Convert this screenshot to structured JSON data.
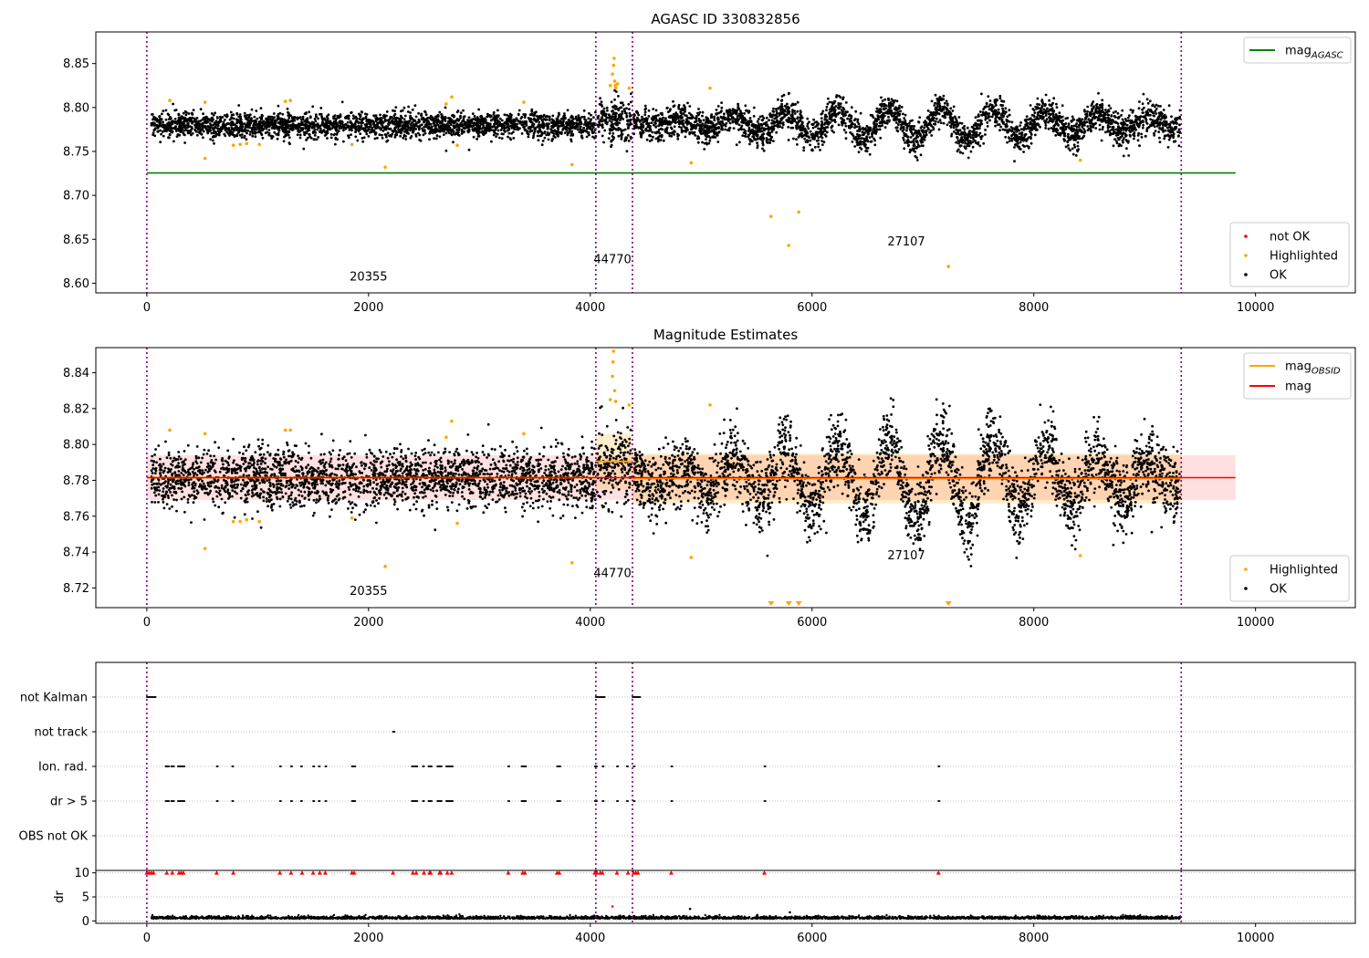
{
  "chart_data": [
    {
      "type": "scatter",
      "title": "AGASC ID 330832856",
      "xlabel": "",
      "ylabel": "",
      "xlim": [
        -460,
        10900
      ],
      "ylim": [
        8.589,
        8.886
      ],
      "xticks": [
        0,
        2000,
        4000,
        6000,
        8000,
        10000
      ],
      "yticks": [
        8.6,
        8.65,
        8.7,
        8.75,
        8.8,
        8.85
      ],
      "ytick_decimals": 2,
      "obsid_boundaries": [
        0,
        4050,
        4380,
        9330
      ],
      "obsid_labels": [
        {
          "text": "20355",
          "x": 2000,
          "y": 8.603
        },
        {
          "text": "44770",
          "x": 4200,
          "y": 8.623
        },
        {
          "text": "27107",
          "x": 6850,
          "y": 8.643
        }
      ],
      "lines": [
        {
          "label": "mag",
          "sub": "AGASC",
          "color": "#008000",
          "y": 8.7255,
          "x0": 0,
          "x1": 9820
        }
      ],
      "line_legend_position": "top-right",
      "point_legend_position": "bottom-right",
      "points_legend": [
        {
          "label": "not OK",
          "color": "#ff0000"
        },
        {
          "label": "Highlighted",
          "color": "#ffa500"
        },
        {
          "label": "OK",
          "color": "#000000"
        }
      ],
      "ok_points_model": {
        "color": "#000000",
        "segments": [
          {
            "x_start": 40,
            "x_end": 4050,
            "mean": 8.78,
            "scatter": 0.007,
            "trend": 0.0
          },
          {
            "x_start": 4060,
            "x_end": 4370,
            "mean": 8.785,
            "scatter": 0.012,
            "trend": 0.0
          },
          {
            "x_start": 4390,
            "x_end": 9320,
            "mean": 8.781,
            "scatter": 0.009,
            "trend": 0.0,
            "wave_amp": 0.018,
            "wave_period": 470
          }
        ]
      },
      "highlighted_points": {
        "color": "#ffa500",
        "values": [
          [
            207,
            8.808
          ],
          [
            525,
            8.806
          ],
          [
            525,
            8.742
          ],
          [
            780,
            8.757
          ],
          [
            842,
            8.758
          ],
          [
            900,
            8.759
          ],
          [
            1015,
            8.758
          ],
          [
            1250,
            8.807
          ],
          [
            1295,
            8.808
          ],
          [
            1850,
            8.758
          ],
          [
            2150,
            8.732
          ],
          [
            2700,
            8.804
          ],
          [
            2750,
            8.812
          ],
          [
            2800,
            8.757
          ],
          [
            3400,
            8.806
          ],
          [
            3835,
            8.735
          ],
          [
            4180,
            8.825
          ],
          [
            4200,
            8.838
          ],
          [
            4210,
            8.848
          ],
          [
            4215,
            8.856
          ],
          [
            4220,
            8.83
          ],
          [
            4225,
            8.825
          ],
          [
            4230,
            8.822
          ],
          [
            4245,
            8.827
          ],
          [
            4350,
            8.822
          ],
          [
            5080,
            8.822
          ],
          [
            4910,
            8.737
          ],
          [
            5630,
            8.676
          ],
          [
            5790,
            8.643
          ],
          [
            5880,
            8.681
          ],
          [
            7230,
            8.619
          ],
          [
            8420,
            8.74
          ]
        ]
      }
    },
    {
      "type": "scatter",
      "title": "Magnitude Estimates",
      "xlabel": "",
      "ylabel": "",
      "xlim": [
        -460,
        10900
      ],
      "ylim": [
        8.709,
        8.854
      ],
      "xticks": [
        0,
        2000,
        4000,
        6000,
        8000,
        10000
      ],
      "yticks": [
        8.72,
        8.74,
        8.76,
        8.78,
        8.8,
        8.82,
        8.84
      ],
      "ytick_decimals": 2,
      "obsid_boundaries": [
        0,
        4050,
        4380,
        9330
      ],
      "obsid_labels": [
        {
          "text": "20355",
          "x": 2000,
          "y": 8.716
        },
        {
          "text": "44770",
          "x": 4200,
          "y": 8.726
        },
        {
          "text": "27107",
          "x": 6850,
          "y": 8.736
        }
      ],
      "bands": [
        {
          "x0": 0,
          "x1": 9820,
          "y0": 8.769,
          "y1": 8.794,
          "color": "#ff0000",
          "opacity": 0.12
        },
        {
          "x0": 4050,
          "x1": 4380,
          "y0": 8.775,
          "y1": 8.806,
          "color": "#ffa500",
          "opacity": 0.2
        },
        {
          "x0": 4380,
          "x1": 9330,
          "y0": 8.767,
          "y1": 8.795,
          "color": "#ffa500",
          "opacity": 0.2
        }
      ],
      "lines": [
        {
          "label": "mag",
          "sub": "OBSID",
          "color": "#ffa500",
          "segments": [
            [
              0,
              4050,
              8.7815
            ],
            [
              4050,
              4380,
              8.7905
            ],
            [
              4380,
              9330,
              8.781
            ]
          ]
        },
        {
          "label": "mag",
          "sub": "",
          "color": "#ff0000",
          "y": 8.7815,
          "x0": 0,
          "x1": 9820
        }
      ],
      "line_legend_position": "top-right",
      "point_legend_position": "bottom-right",
      "points_legend": [
        {
          "label": "Highlighted",
          "color": "#ffa500"
        },
        {
          "label": "OK",
          "color": "#000000"
        }
      ],
      "ok_points_model": {
        "color": "#000000",
        "segments": [
          {
            "x_start": 40,
            "x_end": 4050,
            "mean": 8.781,
            "scatter": 0.008,
            "trend": 0.0
          },
          {
            "x_start": 4060,
            "x_end": 4370,
            "mean": 8.788,
            "scatter": 0.012,
            "trend": 0.0
          },
          {
            "x_start": 4390,
            "x_end": 9320,
            "mean": 8.781,
            "scatter": 0.01,
            "trend": 0.0,
            "wave_amp": 0.022,
            "wave_period": 470
          }
        ]
      },
      "highlighted_points": {
        "color": "#ffa500",
        "values": [
          [
            207,
            8.808
          ],
          [
            525,
            8.806
          ],
          [
            525,
            8.742
          ],
          [
            780,
            8.757
          ],
          [
            842,
            8.757
          ],
          [
            900,
            8.758
          ],
          [
            1015,
            8.757
          ],
          [
            1250,
            8.808
          ],
          [
            1295,
            8.808
          ],
          [
            1850,
            8.759
          ],
          [
            2150,
            8.732
          ],
          [
            2700,
            8.804
          ],
          [
            2750,
            8.813
          ],
          [
            2800,
            8.756
          ],
          [
            3400,
            8.806
          ],
          [
            3835,
            8.734
          ],
          [
            4180,
            8.825
          ],
          [
            4200,
            8.838
          ],
          [
            4205,
            8.846
          ],
          [
            4210,
            8.852
          ],
          [
            4220,
            8.83
          ],
          [
            4230,
            8.824
          ],
          [
            4350,
            8.822
          ],
          [
            5080,
            8.822
          ],
          [
            4910,
            8.737
          ],
          [
            8420,
            8.738
          ]
        ]
      },
      "out_of_range_markers": {
        "color": "#ffa500",
        "x": [
          5630,
          5790,
          5880,
          7230
        ],
        "direction": "down"
      }
    },
    {
      "type": "scatter",
      "title": "",
      "xlim": [
        -460,
        10900
      ],
      "categories": [
        "not Kalman",
        "not track",
        "Ion. rad.",
        "dr > 5",
        "OBS not OK"
      ],
      "flags": {
        "not Kalman": [
          [
            0,
            80
          ],
          [
            4050,
            4130
          ],
          [
            4380,
            4450
          ]
        ],
        "not track": [
          [
            2220,
            2235
          ]
        ],
        "Ion. rad.": [
          [
            170,
            200
          ],
          [
            220,
            245
          ],
          [
            280,
            340
          ],
          [
            630,
            640
          ],
          [
            770,
            780
          ],
          [
            1200,
            1210
          ],
          [
            1300,
            1310
          ],
          [
            1390,
            1400
          ],
          [
            1500,
            1510
          ],
          [
            1550,
            1560
          ],
          [
            1610,
            1620
          ],
          [
            1850,
            1880
          ],
          [
            2390,
            2440
          ],
          [
            2490,
            2500
          ],
          [
            2540,
            2570
          ],
          [
            2620,
            2660
          ],
          [
            2700,
            2760
          ],
          [
            3260,
            3270
          ],
          [
            3380,
            3420
          ],
          [
            3700,
            3730
          ],
          [
            4040,
            4060
          ],
          [
            4110,
            4120
          ],
          [
            4240,
            4250
          ],
          [
            4330,
            4340
          ],
          [
            4390,
            4400
          ],
          [
            4730,
            4740
          ],
          [
            5570,
            5580
          ],
          [
            7140,
            7150
          ]
        ],
        "dr > 5": [
          [
            170,
            200
          ],
          [
            220,
            245
          ],
          [
            280,
            340
          ],
          [
            630,
            640
          ],
          [
            770,
            780
          ],
          [
            1200,
            1210
          ],
          [
            1300,
            1310
          ],
          [
            1390,
            1400
          ],
          [
            1500,
            1510
          ],
          [
            1550,
            1560
          ],
          [
            1610,
            1620
          ],
          [
            1850,
            1880
          ],
          [
            2390,
            2440
          ],
          [
            2490,
            2500
          ],
          [
            2540,
            2570
          ],
          [
            2620,
            2660
          ],
          [
            2700,
            2760
          ],
          [
            3260,
            3270
          ],
          [
            3380,
            3420
          ],
          [
            3700,
            3730
          ],
          [
            4040,
            4060
          ],
          [
            4110,
            4120
          ],
          [
            4240,
            4250
          ],
          [
            4330,
            4340
          ],
          [
            4390,
            4400
          ],
          [
            4730,
            4740
          ],
          [
            5570,
            5580
          ],
          [
            7140,
            7150
          ]
        ],
        "OBS not OK": []
      }
    },
    {
      "type": "scatter",
      "title": "",
      "xlabel": "",
      "ylabel": "dr",
      "xlim": [
        -460,
        10900
      ],
      "ylim": [
        -0.5,
        10.5
      ],
      "xticks": [
        0,
        2000,
        4000,
        6000,
        8000,
        10000
      ],
      "yticks": [
        0,
        5,
        10
      ],
      "dr_ok_model": {
        "color": "#000000",
        "mean": 0.45,
        "scatter": 0.25,
        "segments": [
          [
            40,
            4050
          ],
          [
            4060,
            9320
          ]
        ]
      },
      "dr_clipped_markers": {
        "color": "#ff0000",
        "y": 10,
        "x": [
          0,
          20,
          40,
          60,
          180,
          230,
          290,
          310,
          330,
          630,
          780,
          1200,
          1300,
          1400,
          1500,
          1560,
          1610,
          1850,
          1870,
          2220,
          2400,
          2430,
          2500,
          2550,
          2560,
          2640,
          2650,
          2710,
          2750,
          3260,
          3390,
          3410,
          3700,
          3720,
          4040,
          4060,
          4090,
          4110,
          4240,
          4340,
          4390,
          4410,
          4430,
          4730,
          5570,
          7140
        ]
      },
      "dr_extra_points": {
        "values": [
          [
            4200,
            3.0,
            "#ff0000"
          ],
          [
            4900,
            2.5,
            "#000000"
          ],
          [
            5800,
            1.8,
            "#000000"
          ]
        ]
      }
    }
  ]
}
